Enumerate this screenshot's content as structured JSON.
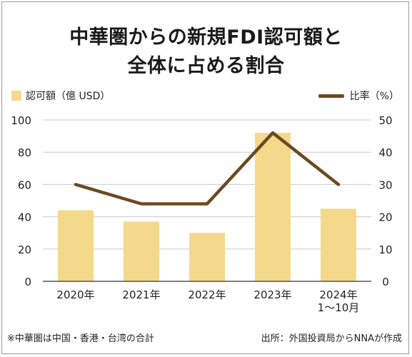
{
  "title_line1": "中華圏からの新規FDI認可額と",
  "title_line2": "全体に占める割合",
  "legend": {
    "bar_label": "認可額（億 USD）",
    "line_label": "比率（%）"
  },
  "footnote_left": "※中華圏は中国・香港・台湾の合計",
  "footnote_right": "出所：外国投資局からNNAが作成",
  "colors": {
    "bar": "#f5d98b",
    "line": "#6b4a21",
    "grid": "#cccccc",
    "axis": "#555555",
    "text": "#222222"
  },
  "chart_data": {
    "type": "bar",
    "categories": [
      "2020年",
      "2021年",
      "2022年",
      "2023年",
      "2024年\n1〜10月"
    ],
    "series": [
      {
        "name": "認可額（億 USD）",
        "type": "bar",
        "axis": "left",
        "values": [
          44,
          37,
          30,
          92,
          45
        ]
      },
      {
        "name": "比率（%）",
        "type": "line",
        "axis": "right",
        "values": [
          30,
          24,
          24,
          46,
          30
        ]
      }
    ],
    "ylim_left": [
      0,
      100
    ],
    "yticks_left": [
      0,
      20,
      40,
      60,
      80,
      100
    ],
    "ylim_right": [
      0,
      50
    ],
    "yticks_right": [
      0,
      10,
      20,
      30,
      40,
      50
    ],
    "grid": true,
    "legend_position": "top"
  }
}
